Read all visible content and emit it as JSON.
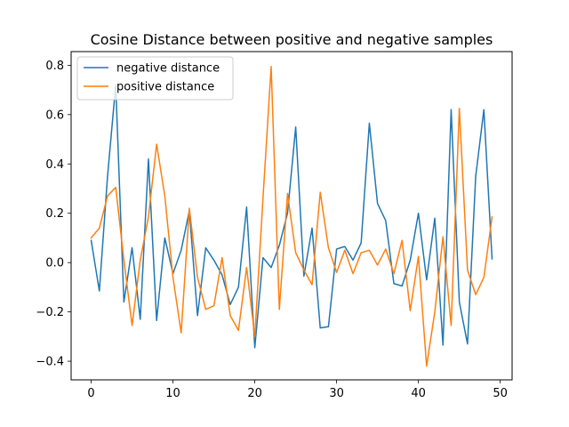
{
  "chart_data": {
    "type": "line",
    "title": "Cosine Distance between positive and negative samples",
    "xlabel": "",
    "ylabel": "",
    "xlim": [
      -2.45,
      51.45
    ],
    "ylim": [
      -0.4755,
      0.8555
    ],
    "xticks": [
      0,
      10,
      20,
      30,
      40,
      50
    ],
    "yticks": [
      -0.4,
      -0.2,
      0.0,
      0.2,
      0.4,
      0.6,
      0.8
    ],
    "ytick_labels": [
      "−0.4",
      "−0.2",
      "0.0",
      "0.2",
      "0.4",
      "0.6",
      "0.8"
    ],
    "grid": false,
    "legend_position": "top-left",
    "x": [
      0,
      1,
      2,
      3,
      4,
      5,
      6,
      7,
      8,
      9,
      10,
      11,
      12,
      13,
      14,
      15,
      16,
      17,
      18,
      19,
      20,
      21,
      22,
      23,
      24,
      25,
      26,
      27,
      28,
      29,
      30,
      31,
      32,
      33,
      34,
      35,
      36,
      37,
      38,
      39,
      40,
      41,
      42,
      43,
      44,
      45,
      46,
      47,
      48,
      49
    ],
    "series": [
      {
        "name": "negative distance",
        "color": "#1f77b4",
        "values": [
          0.09,
          -0.115,
          0.35,
          0.72,
          -0.16,
          0.06,
          -0.23,
          0.42,
          -0.235,
          0.1,
          -0.045,
          0.05,
          0.21,
          -0.215,
          0.06,
          0.01,
          -0.05,
          -0.17,
          -0.1,
          0.225,
          -0.345,
          0.02,
          -0.02,
          0.07,
          0.2,
          0.55,
          -0.055,
          0.14,
          -0.265,
          -0.26,
          0.055,
          0.065,
          0.01,
          0.08,
          0.565,
          0.24,
          0.17,
          -0.085,
          -0.095,
          0.01,
          0.2,
          -0.07,
          0.18,
          -0.335,
          0.62,
          -0.16,
          -0.33,
          0.35,
          0.62,
          0.015
        ]
      },
      {
        "name": "positive distance",
        "color": "#ff7f0e",
        "values": [
          0.1,
          0.14,
          0.27,
          0.305,
          0.01,
          -0.255,
          0.01,
          0.185,
          0.48,
          0.27,
          -0.06,
          -0.285,
          0.22,
          -0.06,
          -0.19,
          -0.175,
          0.02,
          -0.215,
          -0.275,
          -0.02,
          -0.3,
          0.26,
          0.795,
          -0.19,
          0.28,
          0.04,
          -0.03,
          -0.09,
          0.285,
          0.06,
          -0.04,
          0.05,
          -0.045,
          0.04,
          0.05,
          -0.01,
          0.055,
          -0.045,
          0.09,
          -0.195,
          0.025,
          -0.42,
          -0.2,
          0.105,
          -0.255,
          0.625,
          -0.03,
          -0.13,
          -0.06,
          0.185
        ]
      }
    ]
  }
}
